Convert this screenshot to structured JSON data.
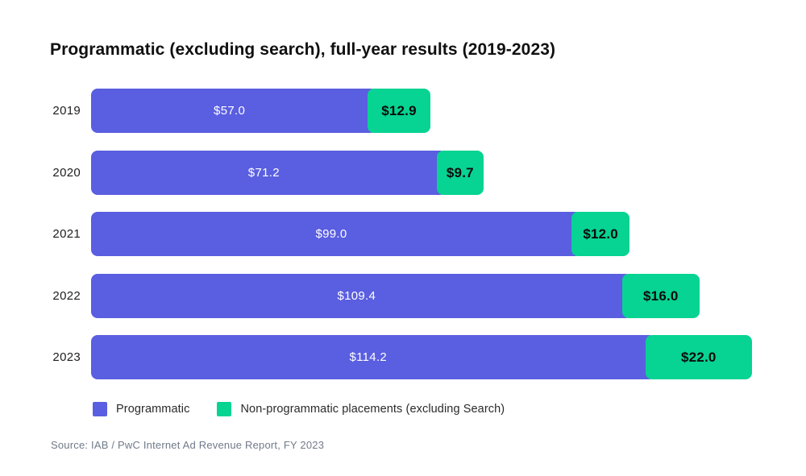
{
  "title": "Programmatic (excluding search), full-year results (2019-2023)",
  "source": "Source: IAB / PwC Internet Ad Revenue Report, FY 2023",
  "colors": {
    "programmatic": "#5a5ee0",
    "non_programmatic": "#07d392",
    "bar_label_on_blue": "#ffffff",
    "bar_label_on_green": "#0b0b0b"
  },
  "legend": [
    {
      "label": "Programmatic",
      "color_key": "programmatic"
    },
    {
      "label": "Non-programmatic placements (excluding Search)",
      "color_key": "non_programmatic"
    }
  ],
  "chart_data": {
    "type": "bar",
    "orientation": "horizontal",
    "stacked": true,
    "title": "Programmatic (excluding search), full-year results (2019-2023)",
    "categories": [
      "2019",
      "2020",
      "2021",
      "2022",
      "2023"
    ],
    "series": [
      {
        "name": "Programmatic",
        "values": [
          57.0,
          71.2,
          99.0,
          109.4,
          114.2
        ],
        "labels": [
          "$57.0",
          "$71.2",
          "$99.0",
          "$109.4",
          "$114.2"
        ]
      },
      {
        "name": "Non-programmatic placements (excluding Search)",
        "values": [
          12.9,
          9.7,
          12.0,
          16.0,
          22.0
        ],
        "labels": [
          "$12.9",
          "$9.7",
          "$12.0",
          "$16.0",
          "$22.0"
        ]
      }
    ],
    "xlim": [
      0,
      136.2
    ],
    "grid": false,
    "legend_position": "bottom"
  }
}
